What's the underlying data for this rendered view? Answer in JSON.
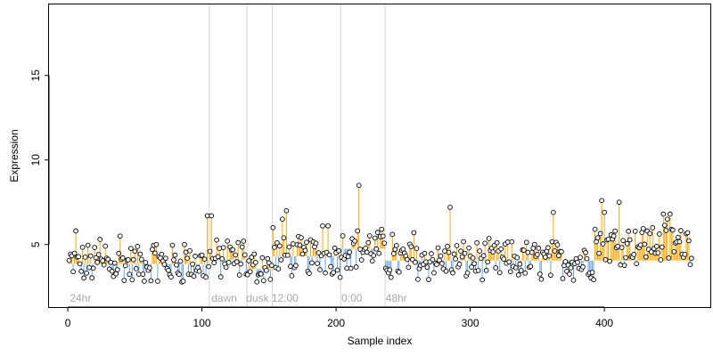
{
  "chart_data": {
    "type": "scatter",
    "title": "",
    "xlabel": "Sample index",
    "ylabel": "Expression",
    "xlim": [
      -14,
      479
    ],
    "ylim": [
      1.3,
      19.2
    ],
    "x_ticks": [
      0,
      100,
      200,
      300,
      400
    ],
    "y_ticks": [
      5,
      10,
      15
    ],
    "grid": false,
    "legend": "none",
    "colors": {
      "above": "#FFA500",
      "below": "#6CA6E0",
      "point_fill": "#ffffff",
      "point_stroke": "#000000",
      "divider": "#D3D3D3",
      "annotation": "#A9A9A9",
      "axis": "#000000"
    },
    "annotations": [
      {
        "x": 105.5,
        "label": "24hr",
        "label_x": 1.5
      },
      {
        "x": 133.5,
        "label": "dawn",
        "label_x": 107
      },
      {
        "x": 152.5,
        "label": "dusk",
        "label_x": 133
      },
      {
        "x": 203.5,
        "label": "12:00",
        "label_x": 152
      },
      {
        "x": 236.5,
        "label": "0:00",
        "label_x": 204
      },
      {
        "x": null,
        "label": "48hr",
        "label_x": 237
      }
    ],
    "segments": [
      {
        "start": 1,
        "end": 105,
        "mean": 3.85,
        "anchor": 95
      },
      {
        "start": 106,
        "end": 133,
        "mean": 4.1,
        "anchor": 102
      },
      {
        "start": 134,
        "end": 152,
        "mean": 3.55,
        "anchor": 71
      },
      {
        "start": 153,
        "end": 203,
        "mean": 4.3,
        "anchor": 108
      },
      {
        "start": 204,
        "end": 236,
        "mean": 4.75,
        "anchor": 213
      },
      {
        "start": 237,
        "end": 465,
        "mean": 4.05,
        "anchor": 224
      }
    ],
    "n_points": 465,
    "highlights": [
      [
        6,
        5.8
      ],
      [
        24,
        5.3
      ],
      [
        28,
        4.9
      ],
      [
        39,
        5.5
      ],
      [
        66,
        5.0
      ],
      [
        87,
        5.0
      ],
      [
        104,
        6.7
      ],
      [
        107,
        6.7
      ],
      [
        119,
        5.2
      ],
      [
        131,
        5.2
      ],
      [
        153,
        6.0
      ],
      [
        160,
        6.5
      ],
      [
        163,
        7.0
      ],
      [
        190,
        6.1
      ],
      [
        194,
        6.1
      ],
      [
        217,
        8.5
      ],
      [
        242,
        5.6
      ],
      [
        258,
        5.7
      ],
      [
        285,
        7.2
      ],
      [
        362,
        6.9
      ],
      [
        393,
        5.9
      ],
      [
        398,
        7.6
      ],
      [
        400,
        6.9
      ],
      [
        411,
        7.5
      ],
      [
        432,
        5.8
      ],
      [
        444,
        6.8
      ],
      [
        447,
        6.5
      ],
      [
        449,
        6.8
      ],
      [
        462,
        5.7
      ]
    ],
    "regime_shift": {
      "from_index": 394,
      "mean": 5.05
    }
  }
}
